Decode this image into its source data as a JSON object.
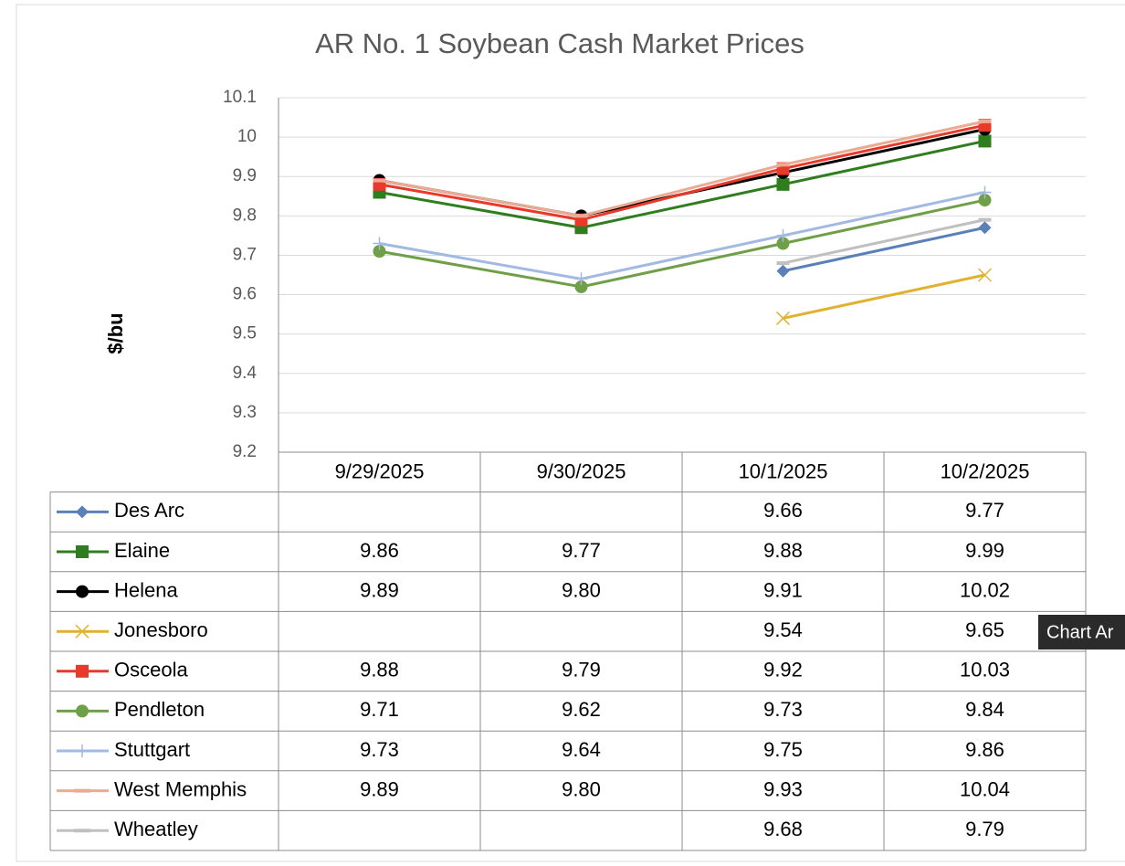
{
  "chart_data": {
    "type": "line",
    "title": "AR No. 1 Soybean Cash Market Prices",
    "y_label": "$/bu",
    "tooltip": "Chart Ar",
    "categories": [
      "9/29/2025",
      "9/30/2025",
      "10/1/2025",
      "10/2/2025"
    ],
    "ylim": [
      9.2,
      10.1
    ],
    "yticks": [
      9.2,
      9.3,
      9.4,
      9.5,
      9.6,
      9.7,
      9.8,
      9.9,
      10,
      10.1
    ],
    "grid": true,
    "data_table": true,
    "series": [
      {
        "name": "Des Arc",
        "color": "#5a80b8",
        "marker": "diamond",
        "values": [
          null,
          null,
          9.66,
          9.77
        ],
        "value_labels": [
          null,
          null,
          "9.66",
          "9.77"
        ]
      },
      {
        "name": "Elaine",
        "color": "#2f7d1f",
        "marker": "square",
        "values": [
          9.86,
          9.77,
          9.88,
          9.99
        ],
        "value_labels": [
          "9.86",
          "9.77",
          "9.88",
          "9.99"
        ]
      },
      {
        "name": "Helena",
        "color": "#000000",
        "marker": "circle",
        "values": [
          9.89,
          9.8,
          9.91,
          10.02
        ],
        "value_labels": [
          "9.89",
          "9.80",
          "9.91",
          "10.02"
        ]
      },
      {
        "name": "Jonesboro",
        "color": "#e1b22f",
        "marker": "x",
        "values": [
          null,
          null,
          9.54,
          9.65
        ],
        "value_labels": [
          null,
          null,
          "9.54",
          "9.65"
        ]
      },
      {
        "name": "Osceola",
        "color": "#e8392a",
        "marker": "square",
        "values": [
          9.88,
          9.79,
          9.92,
          10.03
        ],
        "value_labels": [
          "9.88",
          "9.79",
          "9.92",
          "10.03"
        ]
      },
      {
        "name": "Pendleton",
        "color": "#6f9f46",
        "marker": "circle",
        "values": [
          9.71,
          9.62,
          9.73,
          9.84
        ],
        "value_labels": [
          "9.71",
          "9.62",
          "9.73",
          "9.84"
        ]
      },
      {
        "name": "Stuttgart",
        "color": "#a2b9e2",
        "marker": "plus",
        "values": [
          9.73,
          9.64,
          9.75,
          9.86
        ],
        "value_labels": [
          "9.73",
          "9.64",
          "9.75",
          "9.86"
        ]
      },
      {
        "name": "West Memphis",
        "color": "#eaab92",
        "marker": "dash",
        "values": [
          9.89,
          9.8,
          9.93,
          10.04
        ],
        "value_labels": [
          "9.89",
          "9.80",
          "9.93",
          "10.04"
        ]
      },
      {
        "name": "Wheatley",
        "color": "#c0c0c0",
        "marker": "dash",
        "values": [
          null,
          null,
          9.68,
          9.79
        ],
        "value_labels": [
          null,
          null,
          "9.68",
          "9.79"
        ]
      }
    ]
  }
}
